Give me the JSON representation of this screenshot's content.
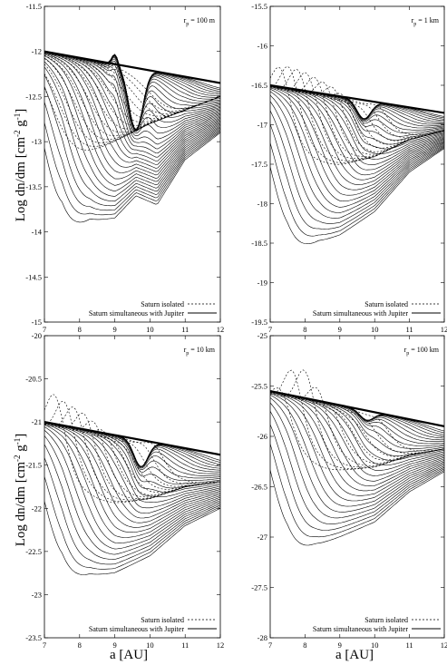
{
  "figure": {
    "ylabel": "Log dn/dm [cm",
    "ylabel_exp1": "-2",
    "ylabel_mid": " g",
    "ylabel_exp2": "-1",
    "ylabel_end": "]",
    "xlabel": "a [AU]"
  },
  "chart_data": [
    {
      "type": "line",
      "panel": "top-left",
      "annotation": {
        "r": "r",
        "sub": "p",
        "value": " = 100 m"
      },
      "xlim": [
        7,
        12
      ],
      "ylim": [
        -15,
        -11.5
      ],
      "xticks": [
        "7",
        "8",
        "9",
        "10",
        "11",
        "12"
      ],
      "yticks": [
        "-11.5",
        "-12",
        "-12.5",
        "-13",
        "-13.5",
        "-14",
        "-14.5",
        "-15"
      ],
      "legend": [
        "Saturn isolated",
        "Saturn simultaneous with Jupiter"
      ],
      "legend_position": "bottom-right",
      "series_style": {
        "Saturn isolated": "dashed",
        "Saturn simultaneous with Jupiter": "solid"
      },
      "family": {
        "envelope": {
          "x": [
            7,
            12
          ],
          "y": [
            -12.0,
            -12.35
          ]
        },
        "solid_bottom": [
          [
            7,
            -14.8
          ],
          [
            7.5,
            -14.2
          ],
          [
            8.3,
            -13.9
          ],
          [
            9,
            -13.85
          ],
          [
            9.6,
            -13.6
          ],
          [
            10.2,
            -13.7
          ],
          [
            11,
            -13.2
          ],
          [
            12,
            -12.9
          ]
        ],
        "dash_bottom": [
          [
            7,
            -13.4
          ],
          [
            8,
            -13.2
          ],
          [
            9,
            -13.0
          ],
          [
            10,
            -12.8
          ],
          [
            12,
            -12.5
          ]
        ],
        "solid_count": 36,
        "dash_count": 14,
        "gap_center": 9.6,
        "gap_depth": -12.95,
        "bump": [
          9.0,
          -11.95
        ]
      }
    },
    {
      "type": "line",
      "panel": "top-right",
      "annotation": {
        "r": "r",
        "sub": "p",
        "value": " = 1 km"
      },
      "xlim": [
        7,
        12
      ],
      "ylim": [
        -19.5,
        -15.5
      ],
      "xticks": [
        "7",
        "8",
        "9",
        "10",
        "11",
        "12"
      ],
      "yticks": [
        "-15.5",
        "-16",
        "-16.5",
        "-17",
        "-17.5",
        "-18",
        "-18.5",
        "-19",
        "-19.5"
      ],
      "legend": [
        "Saturn isolated",
        "Saturn simultaneous with Jupiter"
      ],
      "legend_position": "bottom-right",
      "series_style": {
        "Saturn isolated": "dashed",
        "Saturn simultaneous with Jupiter": "solid"
      },
      "family": {
        "envelope": {
          "x": [
            7,
            12
          ],
          "y": [
            -16.5,
            -16.85
          ]
        },
        "solid_bottom": [
          [
            7,
            -19.2
          ],
          [
            7.5,
            -18.8
          ],
          [
            8.4,
            -18.5
          ],
          [
            9,
            -18.4
          ],
          [
            10,
            -18.1
          ],
          [
            11,
            -17.6
          ],
          [
            12,
            -17.3
          ]
        ],
        "dash_peak": [
          [
            7.5,
            -15.95
          ],
          [
            8,
            -16.05
          ],
          [
            8.5,
            -16.2
          ],
          [
            9,
            -16.35
          ],
          [
            9.4,
            -16.6
          ]
        ],
        "solid_count": 32,
        "dash_count": 12,
        "gap_center": 9.7,
        "gap_depth": -16.95
      }
    },
    {
      "type": "line",
      "panel": "bottom-left",
      "annotation": {
        "r": "r",
        "sub": "p",
        "value": " = 10 km"
      },
      "xlim": [
        7,
        12
      ],
      "ylim": [
        -23.5,
        -20
      ],
      "xticks": [
        "7",
        "8",
        "9",
        "10",
        "11",
        "12"
      ],
      "yticks": [
        "-20",
        "-20.5",
        "-21",
        "-21.5",
        "-22",
        "-22.5",
        "-23",
        "-23.5"
      ],
      "legend": [
        "Saturn isolated",
        "Saturn simultaneous with Jupiter"
      ],
      "legend_position": "bottom-right",
      "series_style": {
        "Saturn isolated": "dashed",
        "Saturn simultaneous with Jupiter": "solid"
      },
      "family": {
        "envelope": {
          "x": [
            7,
            12
          ],
          "y": [
            -21.0,
            -21.38
          ]
        },
        "solid_bottom": [
          [
            7,
            -23.4
          ],
          [
            7.5,
            -23.0
          ],
          [
            8.3,
            -22.8
          ],
          [
            9,
            -22.75
          ],
          [
            10,
            -22.55
          ],
          [
            11,
            -22.2
          ],
          [
            12,
            -22.0
          ]
        ],
        "dash_peak": [
          [
            7.1,
            -20.3
          ],
          [
            7.6,
            -20.5
          ],
          [
            8.1,
            -20.65
          ],
          [
            8.6,
            -20.85
          ],
          [
            9.1,
            -21.1
          ]
        ],
        "solid_count": 30,
        "dash_count": 11,
        "gap_center": 9.75,
        "gap_depth": -21.55
      }
    },
    {
      "type": "line",
      "panel": "bottom-right",
      "annotation": {
        "r": "r",
        "sub": "p",
        "value": " = 100 km"
      },
      "xlim": [
        7,
        12
      ],
      "ylim": [
        -28,
        -25
      ],
      "xticks": [
        "7",
        "8",
        "9",
        "10",
        "11",
        "12"
      ],
      "yticks": [
        "-25",
        "-25.5",
        "-26",
        "-26.5",
        "-27",
        "-27.5",
        "-28"
      ],
      "legend": [
        "Saturn isolated",
        "Saturn simultaneous with Jupiter"
      ],
      "legend_position": "bottom-right",
      "series_style": {
        "Saturn isolated": "dashed",
        "Saturn simultaneous with Jupiter": "solid"
      },
      "family": {
        "envelope": {
          "x": [
            7,
            12
          ],
          "y": [
            -25.55,
            -25.9
          ]
        },
        "solid_bottom": [
          [
            7,
            -27.6
          ],
          [
            7.5,
            -27.3
          ],
          [
            8.3,
            -27.1
          ],
          [
            9,
            -27.0
          ],
          [
            10,
            -26.85
          ],
          [
            11,
            -26.55
          ],
          [
            12,
            -26.35
          ]
        ],
        "dash_peak": [
          [
            7.4,
            -25.3
          ],
          [
            7.8,
            -25.0
          ],
          [
            8.3,
            -25.3
          ],
          [
            8.8,
            -25.55
          ],
          [
            9.2,
            -25.7
          ]
        ],
        "solid_count": 28,
        "dash_count": 9,
        "gap_center": 9.8,
        "gap_depth": -25.85
      }
    }
  ]
}
